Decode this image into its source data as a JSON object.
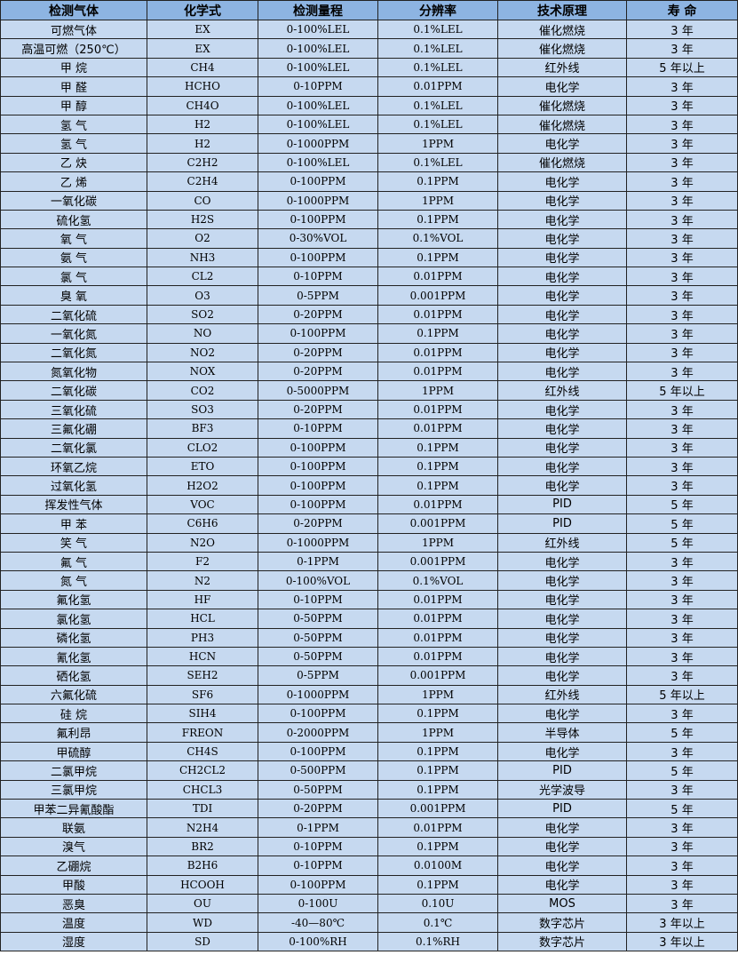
{
  "headers": [
    "检测气体",
    "化学式",
    "检测量程",
    "分辨率",
    "技术原理",
    "寿 命"
  ],
  "rows": [
    [
      "可燃气体",
      "EX",
      "0-100%LEL",
      "0.1%LEL",
      "催化燃烧",
      "3 年"
    ],
    [
      "高温可燃（250℃）",
      "EX",
      "0-100%LEL",
      "0.1%LEL",
      "催化燃烧",
      "3 年"
    ],
    [
      "甲 烷",
      "CH4",
      "0-100%LEL",
      "0.1%LEL",
      "红外线",
      "5 年以上"
    ],
    [
      "甲 醛",
      "HCHO",
      "0-10PPM",
      "0.01PPM",
      "电化学",
      "3 年"
    ],
    [
      "甲 醇",
      "CH4O",
      "0-100%LEL",
      "0.1%LEL",
      "催化燃烧",
      "3 年"
    ],
    [
      "氢 气",
      "H2",
      "0-100%LEL",
      "0.1%LEL",
      "催化燃烧",
      "3 年"
    ],
    [
      "氢 气",
      "H2",
      "0-1000PPM",
      "1PPM",
      "电化学",
      "3 年"
    ],
    [
      "乙 炔",
      "C2H2",
      "0-100%LEL",
      "0.1%LEL",
      "催化燃烧",
      "3 年"
    ],
    [
      "乙 烯",
      "C2H4",
      "0-100PPM",
      "0.1PPM",
      "电化学",
      "3 年"
    ],
    [
      "一氧化碳",
      "CO",
      "0-1000PPM",
      "1PPM",
      "电化学",
      "3 年"
    ],
    [
      "硫化氢",
      "H2S",
      "0-100PPM",
      "0.1PPM",
      "电化学",
      "3 年"
    ],
    [
      "氧 气",
      "O2",
      "0-30%VOL",
      "0.1%VOL",
      "电化学",
      "3 年"
    ],
    [
      "氨 气",
      "NH3",
      "0-100PPM",
      "0.1PPM",
      "电化学",
      "3 年"
    ],
    [
      "氯 气",
      "CL2",
      "0-10PPM",
      "0.01PPM",
      "电化学",
      "3 年"
    ],
    [
      "臭 氧",
      "O3",
      "0-5PPM",
      "0.001PPM",
      "电化学",
      "3 年"
    ],
    [
      "二氧化硫",
      "SO2",
      "0-20PPM",
      "0.01PPM",
      "电化学",
      "3 年"
    ],
    [
      "一氧化氮",
      "NO",
      "0-100PPM",
      "0.1PPM",
      "电化学",
      "3 年"
    ],
    [
      "二氧化氮",
      "NO2",
      "0-20PPM",
      "0.01PPM",
      "电化学",
      "3 年"
    ],
    [
      "氮氧化物",
      "NOX",
      "0-20PPM",
      "0.01PPM",
      "电化学",
      "3 年"
    ],
    [
      "二氧化碳",
      "CO2",
      "0-5000PPM",
      "1PPM",
      "红外线",
      "5 年以上"
    ],
    [
      "三氧化硫",
      "SO3",
      "0-20PPM",
      "0.01PPM",
      "电化学",
      "3 年"
    ],
    [
      "三氟化硼",
      "BF3",
      "0-10PPM",
      "0.01PPM",
      "电化学",
      "3 年"
    ],
    [
      "二氧化氯",
      "CLO2",
      "0-100PPM",
      "0.1PPM",
      "电化学",
      "3 年"
    ],
    [
      "环氧乙烷",
      "ETO",
      "0-100PPM",
      "0.1PPM",
      "电化学",
      "3 年"
    ],
    [
      "过氧化氢",
      "H2O2",
      "0-100PPM",
      "0.1PPM",
      "电化学",
      "3 年"
    ],
    [
      "挥发性气体",
      "VOC",
      "0-100PPM",
      "0.01PPM",
      "PID",
      "5 年"
    ],
    [
      "甲 苯",
      "C6H6",
      "0-20PPM",
      "0.001PPM",
      "PID",
      "5 年"
    ],
    [
      "笑 气",
      "N2O",
      "0-1000PPM",
      "1PPM",
      "红外线",
      "5 年"
    ],
    [
      "氟 气",
      "F2",
      "0-1PPM",
      "0.001PPM",
      "电化学",
      "3 年"
    ],
    [
      "氮 气",
      "N2",
      "0-100%VOL",
      "0.1%VOL",
      "电化学",
      "3 年"
    ],
    [
      "氟化氢",
      "HF",
      "0-10PPM",
      "0.01PPM",
      "电化学",
      "3 年"
    ],
    [
      "氯化氢",
      "HCL",
      "0-50PPM",
      "0.01PPM",
      "电化学",
      "3 年"
    ],
    [
      "磷化氢",
      "PH3",
      "0-50PPM",
      "0.01PPM",
      "电化学",
      "3 年"
    ],
    [
      "氰化氢",
      "HCN",
      "0-50PPM",
      "0.01PPM",
      "电化学",
      "3 年"
    ],
    [
      "硒化氢",
      "SEH2",
      "0-5PPM",
      "0.001PPM",
      "电化学",
      "3 年"
    ],
    [
      "六氟化硫",
      "SF6",
      "0-1000PPM",
      "1PPM",
      "红外线",
      "5 年以上"
    ],
    [
      "硅 烷",
      "SIH4",
      "0-100PPM",
      "0.1PPM",
      "电化学",
      "3 年"
    ],
    [
      "氟利昂",
      "FREON",
      "0-2000PPM",
      "1PPM",
      "半导体",
      "5 年"
    ],
    [
      "甲硫醇",
      "CH4S",
      "0-100PPM",
      "0.1PPM",
      "电化学",
      "3 年"
    ],
    [
      "二氯甲烷",
      "CH2CL2",
      "0-500PPM",
      "0.1PPM",
      "PID",
      "5 年"
    ],
    [
      "三氯甲烷",
      "CHCL3",
      "0-50PPM",
      "0.1PPM",
      "光学波导",
      "3 年"
    ],
    [
      "甲苯二异氰酸酯",
      "TDI",
      "0-20PPM",
      "0.001PPM",
      "PID",
      "5 年"
    ],
    [
      "联氨",
      "N2H4",
      "0-1PPM",
      "0.01PPM",
      "电化学",
      "3 年"
    ],
    [
      "溴气",
      "BR2",
      "0-10PPM",
      "0.1PPM",
      "电化学",
      "3 年"
    ],
    [
      "乙硼烷",
      "B2H6",
      "0-10PPM",
      "0.0100M",
      "电化学",
      "3 年"
    ],
    [
      "甲酸",
      "HCOOH",
      "0-100PPM",
      "0.1PPM",
      "电化学",
      "3 年"
    ],
    [
      "恶臭",
      "OU",
      "0-100U",
      "0.10U",
      "MOS",
      "3 年"
    ],
    [
      "温度",
      "WD",
      "-40—80℃",
      "0.1℃",
      "数字芯片",
      "3 年以上"
    ],
    [
      "湿度",
      "SD",
      "0-100%RH",
      "0.1%RH",
      "数字芯片",
      "3 年以上"
    ]
  ],
  "colors": {
    "header_bg": "#8db4e2",
    "row_bg": "#c6d9f0",
    "border": "#222222"
  }
}
